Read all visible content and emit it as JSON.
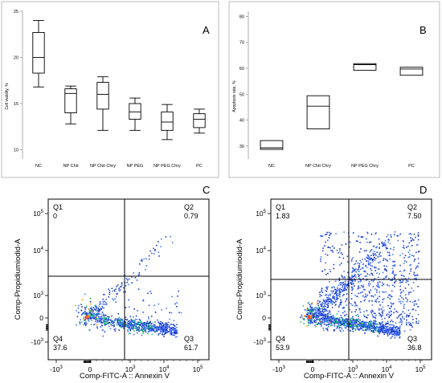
{
  "chart_data": [
    {
      "panel": "A",
      "type": "box",
      "ylabel": "Cell viability, %",
      "ylim": [
        9,
        25
      ],
      "yticks": [
        10,
        15,
        20,
        25
      ],
      "categories": [
        "NC",
        "NP Chit",
        "NP Chit Chry",
        "NP PEG",
        "NP PEG Chry",
        "PC"
      ],
      "boxes": [
        {
          "min": 16.8,
          "q1": 18.3,
          "median": 20.0,
          "q3": 22.7,
          "max": 24.0
        },
        {
          "min": 12.8,
          "q1": 14.0,
          "median": 16.1,
          "q3": 16.6,
          "max": 16.9
        },
        {
          "min": 12.1,
          "q1": 14.4,
          "median": 16.0,
          "q3": 17.3,
          "max": 17.9
        },
        {
          "min": 12.1,
          "q1": 13.3,
          "median": 14.1,
          "q3": 15.0,
          "max": 15.6
        },
        {
          "min": 11.1,
          "q1": 12.1,
          "median": 13.0,
          "q3": 14.1,
          "max": 14.9
        },
        {
          "min": 11.8,
          "q1": 12.4,
          "median": 13.3,
          "q3": 13.9,
          "max": 14.4
        }
      ]
    },
    {
      "panel": "B",
      "type": "box",
      "ylabel": "Apoptosis rate, %",
      "ylim": [
        25,
        82
      ],
      "yticks": [
        30,
        40,
        50,
        60,
        70,
        80
      ],
      "categories": [
        "NC",
        "NP Chit Chry",
        "NP PEG Chry",
        "PC"
      ],
      "boxes": [
        {
          "min": 28.7,
          "q1": 28.7,
          "median": 29.3,
          "q3": 32.1,
          "max": 32.1
        },
        {
          "min": 36.6,
          "q1": 36.6,
          "median": 45.4,
          "q3": 49.4,
          "max": 49.4
        },
        {
          "min": 59.2,
          "q1": 59.2,
          "median": 61.4,
          "q3": 61.8,
          "max": 61.8
        },
        {
          "min": 57.3,
          "q1": 57.3,
          "median": 59.7,
          "q3": 60.4,
          "max": 60.4
        }
      ]
    },
    {
      "panel": "C",
      "type": "scatter",
      "xlabel": "Comp-FITC-A :: Annexin V",
      "ylabel": "Comp-Propidiumiodid-A",
      "quadrants": [
        {
          "name": "Q1",
          "value": "0"
        },
        {
          "name": "Q2",
          "value": "0.79"
        },
        {
          "name": "Q3",
          "value": "61.7"
        },
        {
          "name": "Q4",
          "value": "37.6"
        }
      ]
    },
    {
      "panel": "D",
      "type": "scatter",
      "xlabel": "Comp-FITC-A :: Annexin V",
      "ylabel": "Comp-Propidiumiodid-A",
      "quadrants": [
        {
          "name": "Q1",
          "value": "1.83"
        },
        {
          "name": "Q2",
          "value": "7.50"
        },
        {
          "name": "Q3",
          "value": "36.8"
        },
        {
          "name": "Q4",
          "value": "53.9"
        }
      ]
    }
  ]
}
